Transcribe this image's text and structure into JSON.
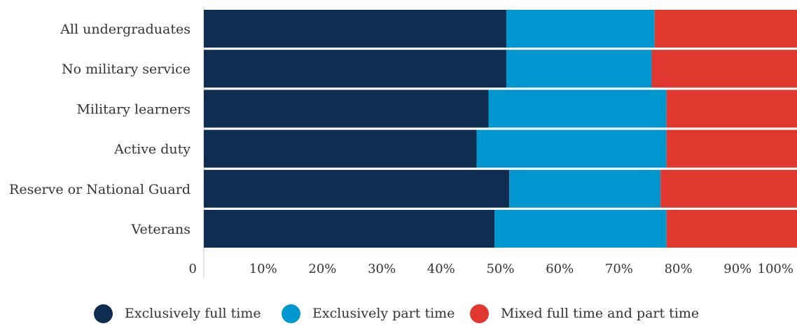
{
  "chart_data": {
    "type": "bar",
    "orientation": "horizontal",
    "stacked": true,
    "categories": [
      "All undergraduates",
      "No military service",
      "Military learners",
      "Active duty",
      "Reserve or National Guard",
      "Veterans"
    ],
    "series": [
      {
        "name": "Exclusively full time",
        "color": "#0e2d51",
        "values": [
          51,
          51,
          48,
          46,
          51.5,
          49
        ]
      },
      {
        "name": "Exclusively part time",
        "color": "#0097d1",
        "values": [
          25,
          24.5,
          30,
          32,
          25.5,
          29
        ]
      },
      {
        "name": "Mixed full time and part time",
        "color": "#e0382e",
        "values": [
          24,
          24.5,
          22,
          22,
          23,
          22
        ]
      }
    ],
    "x_ticks": [
      "0",
      "10%",
      "20%",
      "30%",
      "40%",
      "50%",
      "60%",
      "70%",
      "80%",
      "90%",
      "100%"
    ],
    "xlim": [
      0,
      100
    ],
    "grid": false,
    "legend_position": "bottom"
  }
}
